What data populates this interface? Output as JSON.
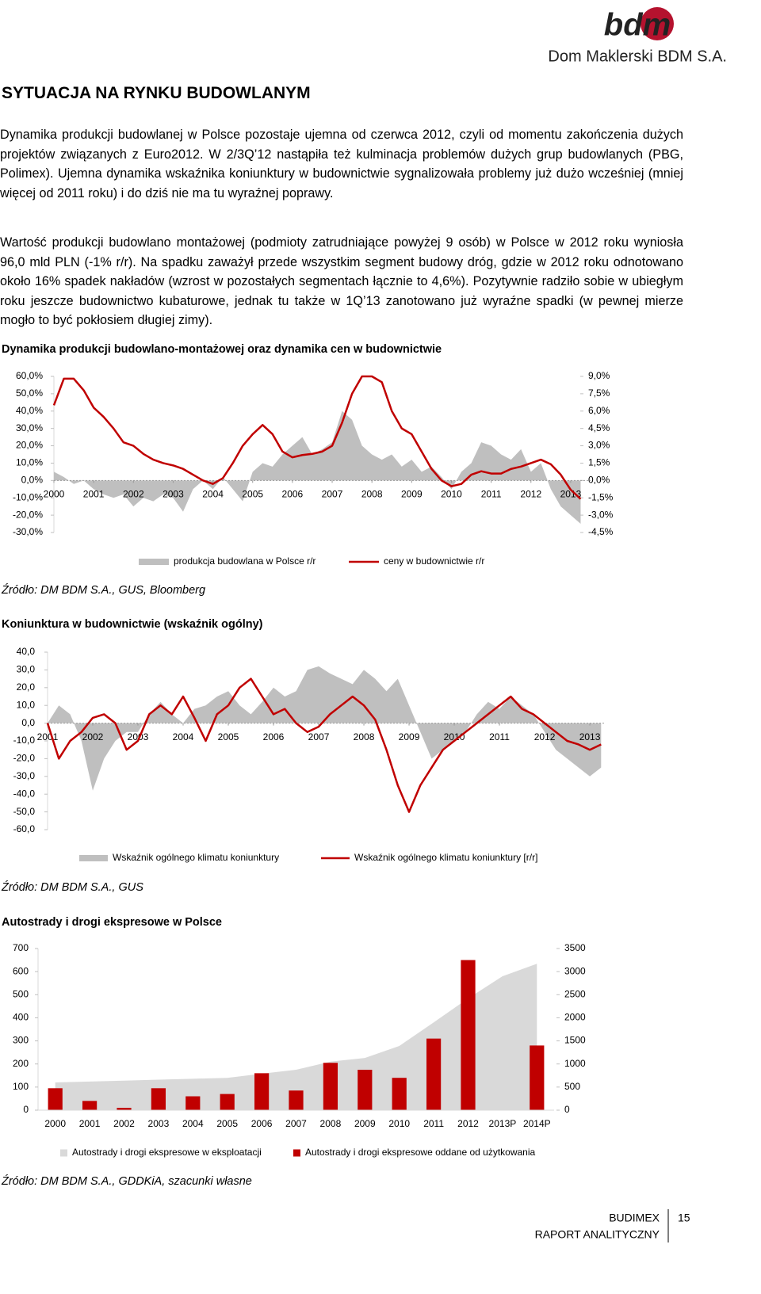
{
  "header": {
    "logo": "bdm",
    "company": "Dom Maklerski BDM S.A."
  },
  "section_title": "SYTUACJA NA RYNKU BUDOWLANYM",
  "paragraphs": [
    "Dynamika produkcji budowlanej w Polsce pozostaje ujemna od czerwca 2012, czyli od momentu zakończenia dużych projektów związanych z Euro2012. W 2/3Q’12 nastąpiła też kulminacja problemów dużych grup budowlanych (PBG, Polimex). Ujemna dynamika wskaźnika koniunktury w budownictwie sygnalizowała problemy już dużo wcześniej (mniej więcej od 2011 roku) i do dziś nie ma tu wyraźnej poprawy.",
    "Wartość produkcji budowlano montażowej (podmioty zatrudniające powyżej 9 osób) w Polsce w 2012 roku wyniosła 96,0 mld PLN (-1% r/r). Na spadku zaważył przede wszystkim segment budowy dróg, gdzie w 2012 roku odnotowano około 16% spadek nakładów (wzrost w pozostałych segmentach łącznie to 4,6%). Pozytywnie radziło sobie w ubiegłym roku jeszcze budownictwo kubaturowe, jednak tu także w 1Q’13 zanotowano już wyraźne spadki (w pewnej mierze mogło to być pokłosiem długiej zimy)."
  ],
  "chart_data": [
    {
      "type": "line",
      "title": "Dynamika produkcji budowlano-montażowej oraz dynamika cen w budownictwie",
      "source": "Źródło: DM BDM S.A., GUS, Bloomberg",
      "x": [
        2000,
        2000.25,
        2000.5,
        2000.75,
        2001,
        2001.25,
        2001.5,
        2001.75,
        2002,
        2002.25,
        2002.5,
        2002.75,
        2003,
        2003.25,
        2003.5,
        2003.75,
        2004,
        2004.25,
        2004.5,
        2004.75,
        2005,
        2005.25,
        2005.5,
        2005.75,
        2006,
        2006.25,
        2006.5,
        2006.75,
        2007,
        2007.25,
        2007.5,
        2007.75,
        2008,
        2008.25,
        2008.5,
        2008.75,
        2009,
        2009.25,
        2009.5,
        2009.75,
        2010,
        2010.25,
        2010.5,
        2010.75,
        2011,
        2011.25,
        2011.5,
        2011.75,
        2012,
        2012.25,
        2012.5,
        2012.75,
        2013,
        2013.25
      ],
      "xlim": [
        2000,
        2013.5
      ],
      "xticks": [
        2000,
        2001,
        2002,
        2003,
        2004,
        2005,
        2006,
        2007,
        2008,
        2009,
        2010,
        2011,
        2012,
        2013
      ],
      "ylim": [
        -30,
        60
      ],
      "yticks": [
        {
          "value": 60,
          "label": "60,0%"
        },
        {
          "value": 50,
          "label": "50,0%"
        },
        {
          "value": 40,
          "label": "40,0%"
        },
        {
          "value": 30,
          "label": "30,0%"
        },
        {
          "value": 20,
          "label": "20,0%"
        },
        {
          "value": 10,
          "label": "10,0%"
        },
        {
          "value": 0,
          "label": "0,0%"
        },
        {
          "value": -10,
          "label": "-10,0%"
        },
        {
          "value": -20,
          "label": "-20,0%"
        },
        {
          "value": -30,
          "label": "-30,0%"
        }
      ],
      "y2lim": [
        -4.5,
        9
      ],
      "y2ticks": [
        {
          "value": 9,
          "label": "9,0%"
        },
        {
          "value": 7.5,
          "label": "7,5%"
        },
        {
          "value": 6,
          "label": "6,0%"
        },
        {
          "value": 4.5,
          "label": "4,5%"
        },
        {
          "value": 3,
          "label": "3,0%"
        },
        {
          "value": 1.5,
          "label": "1,5%"
        },
        {
          "value": 0,
          "label": "0,0%"
        },
        {
          "value": -1.5,
          "label": "-1,5%"
        },
        {
          "value": -3,
          "label": "-3,0%"
        },
        {
          "value": -4.5,
          "label": "-4,5%"
        }
      ],
      "legend": "bottom",
      "series": [
        {
          "name": "produkcja budowlana w Polsce r/r",
          "type": "area",
          "color": "#bfbfbf",
          "values": [
            5,
            2,
            -2,
            0,
            -5,
            -8,
            -10,
            -8,
            -15,
            -10,
            -12,
            -8,
            -10,
            -18,
            -5,
            0,
            -5,
            2,
            -5,
            -12,
            5,
            10,
            8,
            15,
            20,
            25,
            15,
            18,
            22,
            40,
            35,
            20,
            15,
            12,
            15,
            8,
            12,
            5,
            8,
            2,
            -5,
            5,
            10,
            22,
            20,
            15,
            12,
            18,
            5,
            10,
            -5,
            -15,
            -20,
            -25
          ]
        },
        {
          "name": "ceny w budownictwie r/r",
          "type": "line",
          "color": "#c00000",
          "axis": "y2",
          "values": [
            6.5,
            8.8,
            8.8,
            7.8,
            6.3,
            5.5,
            4.5,
            3.3,
            3.0,
            2.3,
            1.8,
            1.5,
            1.3,
            1.0,
            0.5,
            0.0,
            -0.3,
            0.2,
            1.5,
            3.0,
            4.0,
            4.8,
            4.0,
            2.5,
            2.0,
            2.2,
            2.3,
            2.5,
            3.0,
            5.0,
            7.5,
            9.0,
            9.0,
            8.5,
            6.0,
            4.5,
            4.0,
            2.5,
            1.0,
            0.0,
            -0.5,
            -0.3,
            0.5,
            0.8,
            0.6,
            0.6,
            1.0,
            1.2,
            1.5,
            1.8,
            1.4,
            0.5,
            -0.8,
            -1.6
          ]
        }
      ]
    },
    {
      "type": "line",
      "title": "Koniunktura w budownictwie (wskaźnik ogólny)",
      "source": "Źródło: DM BDM S.A., GUS",
      "x": [
        2001,
        2001.25,
        2001.5,
        2001.75,
        2002,
        2002.25,
        2002.5,
        2002.75,
        2003,
        2003.25,
        2003.5,
        2003.75,
        2004,
        2004.25,
        2004.5,
        2004.75,
        2005,
        2005.25,
        2005.5,
        2005.75,
        2006,
        2006.25,
        2006.5,
        2006.75,
        2007,
        2007.25,
        2007.5,
        2007.75,
        2008,
        2008.25,
        2008.5,
        2008.75,
        2009,
        2009.25,
        2009.5,
        2009.75,
        2010,
        2010.25,
        2010.5,
        2010.75,
        2011,
        2011.25,
        2011.5,
        2011.75,
        2012,
        2012.25,
        2012.5,
        2012.75,
        2013,
        2013.25
      ],
      "xlim": [
        2001,
        2013.35
      ],
      "xticks": [
        2001,
        2002,
        2003,
        2004,
        2005,
        2006,
        2007,
        2008,
        2009,
        2010,
        2011,
        2012,
        2013
      ],
      "ylim": [
        -60,
        40
      ],
      "yticks": [
        {
          "value": 40,
          "label": "40,0"
        },
        {
          "value": 30,
          "label": "30,0"
        },
        {
          "value": 20,
          "label": "20,0"
        },
        {
          "value": 10,
          "label": "10,0"
        },
        {
          "value": 0,
          "label": "0,0"
        },
        {
          "value": -10,
          "label": "-10,0"
        },
        {
          "value": -20,
          "label": "-20,0"
        },
        {
          "value": -30,
          "label": "-30,0"
        },
        {
          "value": -40,
          "label": "-40,0"
        },
        {
          "value": -50,
          "label": "-50,0"
        },
        {
          "value": -60,
          "label": "-60,0"
        }
      ],
      "legend": "bottom",
      "series": [
        {
          "name": "Wskaźnik ogólnego klimatu koniunktury",
          "type": "area",
          "color": "#bfbfbf",
          "values": [
            0,
            10,
            5,
            -10,
            -38,
            -20,
            -10,
            -5,
            -5,
            5,
            12,
            5,
            0,
            8,
            10,
            15,
            18,
            10,
            5,
            12,
            20,
            15,
            18,
            30,
            32,
            28,
            25,
            22,
            30,
            25,
            18,
            25,
            10,
            -5,
            -20,
            -15,
            -10,
            -5,
            5,
            12,
            8,
            15,
            10,
            5,
            -5,
            -15,
            -20,
            -25,
            -30,
            -25
          ]
        },
        {
          "name": "Wskaźnik ogólnego klimatu koniunktury [r/r]",
          "type": "line",
          "color": "#c00000",
          "values": [
            0,
            -20,
            -10,
            -5,
            3,
            5,
            0,
            -15,
            -10,
            5,
            10,
            5,
            15,
            3,
            -10,
            5,
            10,
            20,
            25,
            15,
            5,
            8,
            0,
            -5,
            -2,
            5,
            10,
            15,
            10,
            2,
            -15,
            -35,
            -50,
            -35,
            -25,
            -15,
            -10,
            -5,
            0,
            5,
            10,
            15,
            8,
            5,
            0,
            -5,
            -10,
            -12,
            -15,
            -12
          ]
        }
      ]
    },
    {
      "type": "bar",
      "title": "Autostrady i drogi ekspresowe w Polsce",
      "source": "Źródło: DM BDM S.A., GDDKiA, szacunki własne",
      "categories": [
        "2000",
        "2001",
        "2002",
        "2003",
        "2004",
        "2005",
        "2006",
        "2007",
        "2008",
        "2009",
        "2010",
        "2011",
        "2012",
        "2013P",
        "2014P"
      ],
      "ylim": [
        0,
        700
      ],
      "yticks": [
        0,
        100,
        200,
        300,
        400,
        500,
        600,
        700
      ],
      "y2lim": [
        0,
        3500
      ],
      "y2ticks": [
        0,
        500,
        1000,
        1500,
        2000,
        2500,
        3000,
        3500
      ],
      "legend": "bottom",
      "series": [
        {
          "name": "Autostrady i drogi ekspresowe w eksploatacji",
          "type": "area",
          "color": "#d9d9d9",
          "axis": "y2",
          "values": [
            600,
            620,
            640,
            660,
            680,
            700,
            790,
            875,
            1050,
            1130,
            1390,
            1900,
            2420,
            2900,
            3170
          ]
        },
        {
          "name": "Autostrady i drogi ekspresowe oddane od użytkowania",
          "type": "bar",
          "color": "#c00000",
          "values": [
            95,
            40,
            10,
            95,
            60,
            70,
            160,
            85,
            205,
            175,
            140,
            310,
            650,
            null,
            280
          ]
        }
      ]
    }
  ],
  "footer": {
    "company": "BUDIMEX",
    "report": "RAPORT ANALITYCZNY",
    "page": 15
  }
}
